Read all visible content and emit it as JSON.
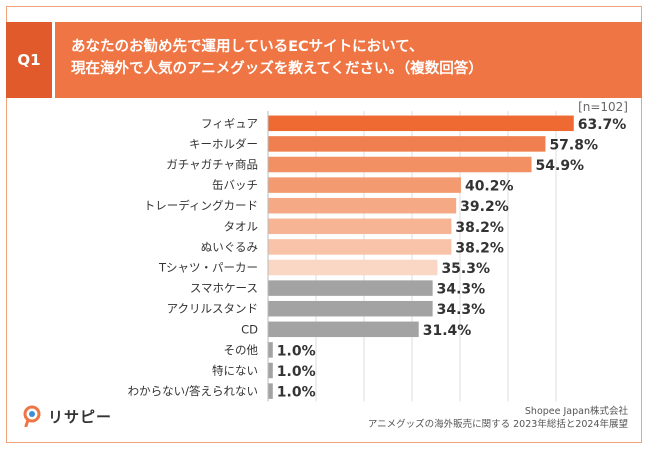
{
  "question": {
    "badge": "Q1",
    "line1": "あなたのお勧め先で運用しているECサイトにおいて、",
    "line2": "現在海外で人気のアニメグッズを教えてください。（複数回答）"
  },
  "sample_size": "[n=102]",
  "logo": {
    "text": "リサピー",
    "icon": "magnifier-pin-icon"
  },
  "source": {
    "line1": "Shopee Japan株式会社",
    "line2": "アニメグッズの海外販売に関する 2023年総括と2024年展望"
  },
  "colors": {
    "accent": "#ef7544",
    "badge": "#e05a2c",
    "gray_bar": "#a3a3a3",
    "grid": "#dddddd"
  },
  "chart_data": {
    "type": "bar",
    "orientation": "horizontal",
    "categories": [
      "フィギュア",
      "キーホルダー",
      "ガチャガチャ商品",
      "缶バッチ",
      "トレーディングカード",
      "タオル",
      "ぬいぐるみ",
      "Tシャツ・パーカー",
      "スマホケース",
      "アクリルスタンド",
      "CD",
      "その他",
      "特にない",
      "わからない/答えられない"
    ],
    "values": [
      63.7,
      57.8,
      54.9,
      40.2,
      39.2,
      38.2,
      38.2,
      35.3,
      34.3,
      34.3,
      31.4,
      1.0,
      1.0,
      1.0
    ],
    "value_labels": [
      "63.7%",
      "57.8%",
      "54.9%",
      "40.2%",
      "39.2%",
      "38.2%",
      "38.2%",
      "35.3%",
      "34.3%",
      "34.3%",
      "31.4%",
      "1.0%",
      "1.0%",
      "1.0%"
    ],
    "bar_colors": [
      "#ef6a33",
      "#f07f4f",
      "#f29064",
      "#f39a70",
      "#f5a985",
      "#f6b494",
      "#f8c3a8",
      "#fad6c4",
      "#a3a3a3",
      "#a3a3a3",
      "#a3a3a3",
      "#a3a3a3",
      "#a3a3a3",
      "#a3a3a3"
    ],
    "xlim": [
      0,
      70
    ],
    "grid": true,
    "legend": "none"
  }
}
